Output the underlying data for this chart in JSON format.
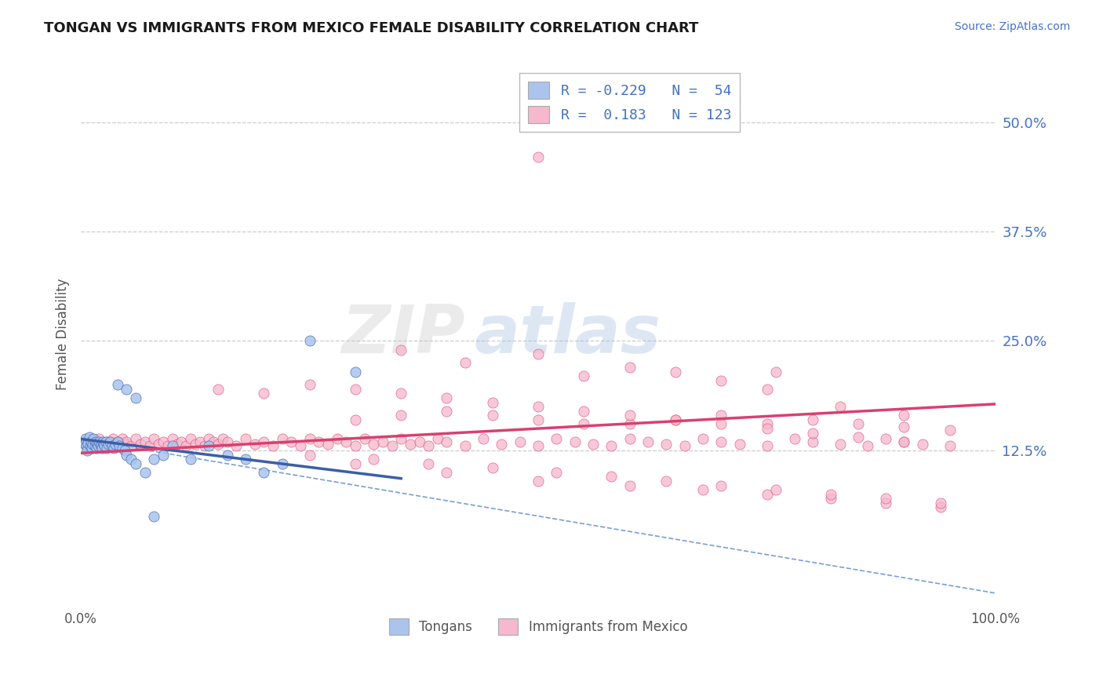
{
  "title": "TONGAN VS IMMIGRANTS FROM MEXICO FEMALE DISABILITY CORRELATION CHART",
  "source": "Source: ZipAtlas.com",
  "ylabel": "Female Disability",
  "xlim": [
    0,
    1.0
  ],
  "ylim": [
    -0.055,
    0.57
  ],
  "yticks": [
    0.125,
    0.25,
    0.375,
    0.5
  ],
  "ytick_labels": [
    "12.5%",
    "25.0%",
    "37.5%",
    "50.0%"
  ],
  "xtick_vals": [
    0.0,
    1.0
  ],
  "xtick_labels": [
    "0.0%",
    "100.0%"
  ],
  "tongan_color": "#aac4ee",
  "tongan_edge": "#3a5fa8",
  "mexico_color": "#f5b8cc",
  "mexico_edge": "#d94070",
  "tongan_trend_x": [
    0.0,
    0.35
  ],
  "tongan_trend_y": [
    0.138,
    0.093
  ],
  "mexico_trend_x": [
    0.0,
    1.0
  ],
  "mexico_trend_y": [
    0.122,
    0.178
  ],
  "overall_trend_x": [
    0.0,
    1.0
  ],
  "overall_trend_y": [
    0.138,
    -0.038
  ],
  "background_color": "#ffffff",
  "grid_color": "#cccccc",
  "title_color": "#1a1a1a",
  "source_color": "#4472c4",
  "axis_color": "#555555",
  "scatter_size": 90,
  "tongan_x": [
    0.003,
    0.004,
    0.005,
    0.006,
    0.007,
    0.008,
    0.009,
    0.01,
    0.011,
    0.012,
    0.013,
    0.014,
    0.015,
    0.016,
    0.017,
    0.018,
    0.019,
    0.02,
    0.021,
    0.022,
    0.023,
    0.024,
    0.025,
    0.026,
    0.027,
    0.028,
    0.03,
    0.032,
    0.034,
    0.036,
    0.038,
    0.04,
    0.042,
    0.045,
    0.048,
    0.05,
    0.055,
    0.06,
    0.07,
    0.08,
    0.09,
    0.1,
    0.12,
    0.14,
    0.16,
    0.18,
    0.2,
    0.22,
    0.25,
    0.3,
    0.04,
    0.05,
    0.06,
    0.08
  ],
  "tongan_y": [
    0.135,
    0.132,
    0.138,
    0.13,
    0.125,
    0.133,
    0.14,
    0.13,
    0.135,
    0.128,
    0.132,
    0.138,
    0.13,
    0.135,
    0.128,
    0.133,
    0.13,
    0.135,
    0.132,
    0.13,
    0.128,
    0.135,
    0.132,
    0.13,
    0.135,
    0.128,
    0.132,
    0.135,
    0.13,
    0.128,
    0.132,
    0.135,
    0.13,
    0.128,
    0.125,
    0.12,
    0.115,
    0.11,
    0.1,
    0.115,
    0.12,
    0.13,
    0.115,
    0.13,
    0.12,
    0.115,
    0.1,
    0.11,
    0.25,
    0.215,
    0.2,
    0.195,
    0.185,
    0.05
  ],
  "mexico_x": [
    0.005,
    0.008,
    0.01,
    0.012,
    0.015,
    0.018,
    0.02,
    0.022,
    0.025,
    0.028,
    0.03,
    0.032,
    0.035,
    0.038,
    0.04,
    0.042,
    0.045,
    0.048,
    0.05,
    0.055,
    0.06,
    0.065,
    0.07,
    0.075,
    0.08,
    0.085,
    0.09,
    0.095,
    0.1,
    0.105,
    0.11,
    0.115,
    0.12,
    0.125,
    0.13,
    0.135,
    0.14,
    0.145,
    0.15,
    0.155,
    0.16,
    0.17,
    0.18,
    0.19,
    0.2,
    0.21,
    0.22,
    0.23,
    0.24,
    0.25,
    0.26,
    0.27,
    0.28,
    0.29,
    0.3,
    0.31,
    0.32,
    0.33,
    0.34,
    0.35,
    0.36,
    0.37,
    0.38,
    0.39,
    0.4,
    0.42,
    0.44,
    0.46,
    0.48,
    0.5,
    0.52,
    0.54,
    0.56,
    0.58,
    0.6,
    0.62,
    0.64,
    0.66,
    0.68,
    0.7,
    0.72,
    0.75,
    0.78,
    0.8,
    0.83,
    0.86,
    0.88,
    0.9,
    0.92,
    0.95,
    0.3,
    0.35,
    0.4,
    0.45,
    0.5,
    0.55,
    0.6,
    0.65,
    0.7,
    0.75,
    0.8,
    0.85,
    0.9,
    0.95,
    0.15,
    0.2,
    0.25,
    0.3,
    0.35,
    0.4,
    0.45,
    0.5,
    0.55,
    0.6,
    0.65,
    0.7,
    0.75,
    0.8,
    0.85,
    0.9,
    0.35,
    0.42,
    0.5,
    0.55,
    0.6,
    0.65,
    0.7,
    0.75,
    0.3,
    0.4,
    0.5,
    0.6,
    0.68,
    0.75,
    0.82,
    0.88,
    0.94,
    0.76,
    0.83,
    0.9,
    0.25,
    0.32,
    0.38,
    0.45,
    0.52,
    0.58,
    0.64,
    0.7,
    0.76,
    0.82,
    0.88,
    0.94,
    0.5
  ],
  "mexico_y": [
    0.135,
    0.132,
    0.13,
    0.138,
    0.135,
    0.132,
    0.138,
    0.13,
    0.132,
    0.135,
    0.13,
    0.135,
    0.138,
    0.132,
    0.135,
    0.13,
    0.138,
    0.132,
    0.135,
    0.13,
    0.138,
    0.132,
    0.135,
    0.13,
    0.138,
    0.132,
    0.135,
    0.13,
    0.138,
    0.132,
    0.135,
    0.13,
    0.138,
    0.132,
    0.135,
    0.13,
    0.138,
    0.135,
    0.132,
    0.138,
    0.135,
    0.13,
    0.138,
    0.132,
    0.135,
    0.13,
    0.138,
    0.135,
    0.13,
    0.138,
    0.135,
    0.132,
    0.138,
    0.135,
    0.13,
    0.138,
    0.132,
    0.135,
    0.13,
    0.138,
    0.132,
    0.135,
    0.13,
    0.138,
    0.135,
    0.13,
    0.138,
    0.132,
    0.135,
    0.13,
    0.138,
    0.135,
    0.132,
    0.13,
    0.138,
    0.135,
    0.132,
    0.13,
    0.138,
    0.135,
    0.132,
    0.13,
    0.138,
    0.135,
    0.132,
    0.13,
    0.138,
    0.135,
    0.132,
    0.13,
    0.16,
    0.165,
    0.17,
    0.165,
    0.16,
    0.155,
    0.155,
    0.16,
    0.165,
    0.155,
    0.16,
    0.155,
    0.152,
    0.148,
    0.195,
    0.19,
    0.2,
    0.195,
    0.19,
    0.185,
    0.18,
    0.175,
    0.17,
    0.165,
    0.16,
    0.155,
    0.15,
    0.145,
    0.14,
    0.135,
    0.24,
    0.225,
    0.235,
    0.21,
    0.22,
    0.215,
    0.205,
    0.195,
    0.11,
    0.1,
    0.09,
    0.085,
    0.08,
    0.075,
    0.07,
    0.065,
    0.06,
    0.215,
    0.175,
    0.165,
    0.12,
    0.115,
    0.11,
    0.105,
    0.1,
    0.095,
    0.09,
    0.085,
    0.08,
    0.075,
    0.07,
    0.065,
    0.46
  ]
}
